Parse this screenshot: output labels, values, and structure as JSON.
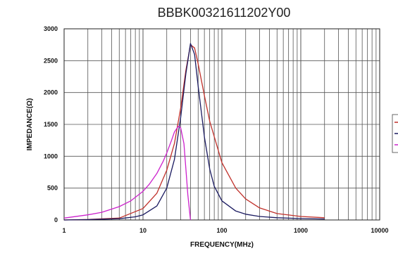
{
  "chart_data": {
    "type": "line",
    "title": "BBBK00321611202Y00",
    "xlabel": "FREQUENCY(MHz)",
    "ylabel": "IMPEDANCE(Ω)",
    "xscale": "log",
    "xlim": [
      1,
      10000
    ],
    "ylim": [
      0,
      3000
    ],
    "x_ticks": [
      1,
      10,
      100,
      1000,
      10000
    ],
    "x_tick_labels": [
      "1",
      "10",
      "100",
      "1000",
      "10000"
    ],
    "y_ticks": [
      0,
      500,
      1000,
      1500,
      2000,
      2500,
      3000
    ],
    "y_tick_labels": [
      "0",
      "500",
      "1000",
      "1500",
      "2000",
      "2500",
      "3000"
    ],
    "grid": true,
    "legend": "right, partially cut off, no readable labels",
    "series": [
      {
        "color": "#c0302a",
        "x": [
          1,
          2,
          5,
          10,
          15,
          20,
          25,
          30,
          35,
          40,
          45,
          50,
          60,
          70,
          100,
          150,
          200,
          300,
          500,
          1000,
          2000
        ],
        "y": [
          0,
          8,
          30,
          180,
          420,
          780,
          1200,
          1750,
          2350,
          2750,
          2700,
          2450,
          1950,
          1550,
          900,
          500,
          330,
          190,
          100,
          55,
          35
        ]
      },
      {
        "color": "#1a1a60",
        "x": [
          1,
          2,
          5,
          8,
          10,
          15,
          20,
          25,
          30,
          35,
          40,
          45,
          50,
          60,
          70,
          80,
          100,
          150,
          200,
          300,
          500,
          1000,
          2000
        ],
        "y": [
          0,
          5,
          20,
          50,
          80,
          220,
          500,
          950,
          1600,
          2300,
          2770,
          2600,
          2100,
          1300,
          800,
          530,
          300,
          140,
          90,
          55,
          35,
          22,
          15
        ]
      },
      {
        "color": "#cc22cc",
        "x": [
          1,
          2,
          3,
          5,
          7,
          10,
          12,
          15,
          18,
          20,
          23,
          25,
          28,
          30,
          33,
          35,
          37,
          40
        ],
        "y": [
          30,
          80,
          120,
          210,
          300,
          450,
          560,
          730,
          920,
          1050,
          1250,
          1380,
          1470,
          1450,
          1200,
          800,
          400,
          0
        ]
      }
    ]
  }
}
